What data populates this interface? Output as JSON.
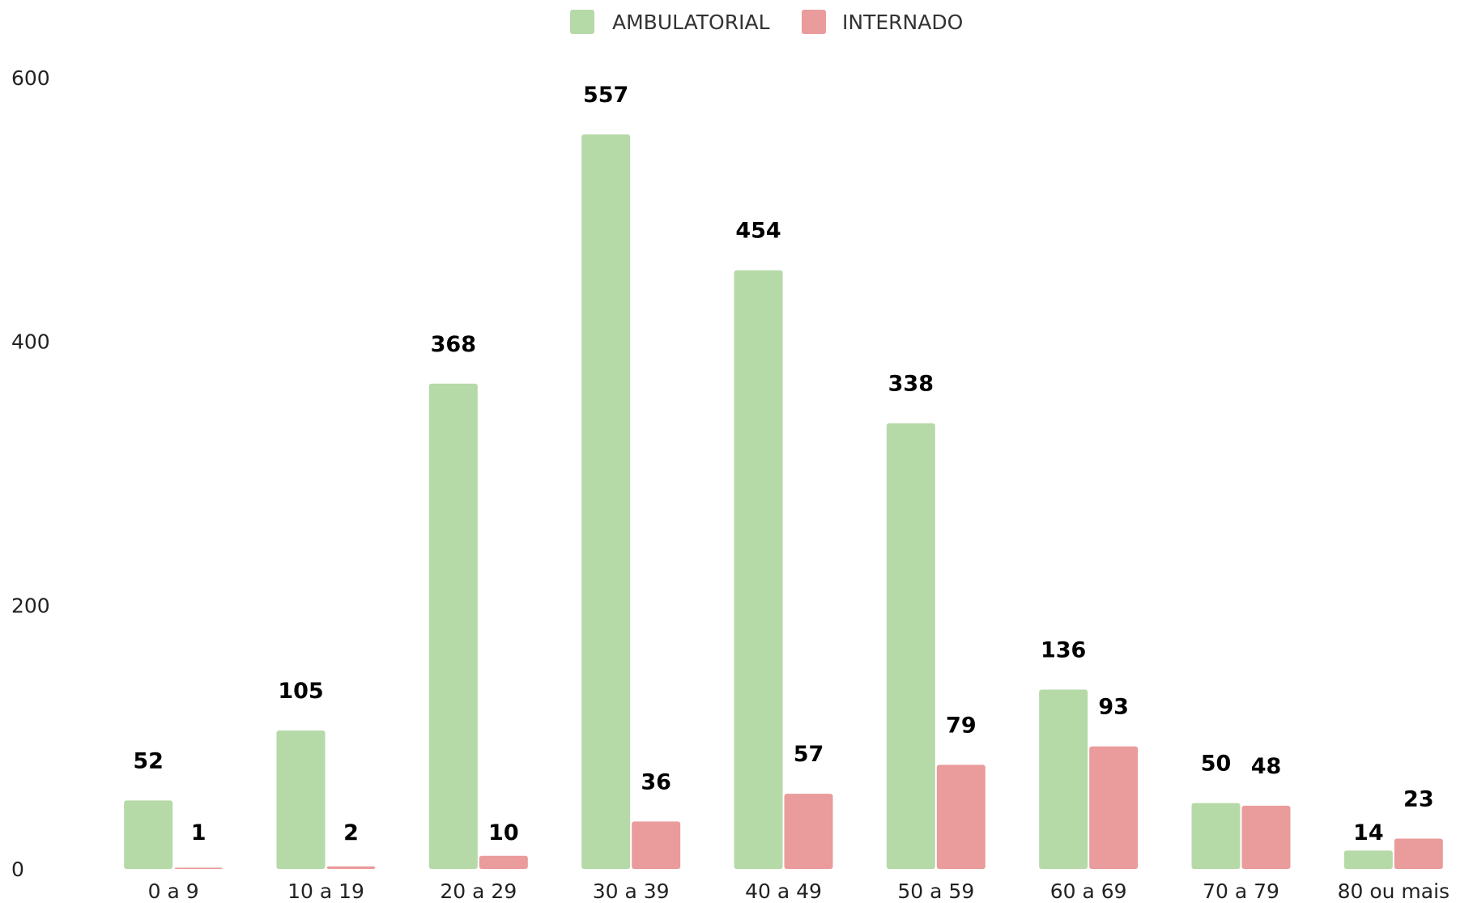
{
  "chart_data": {
    "type": "bar",
    "categories": [
      "0 a 9",
      "10 a 19",
      "20 a 29",
      "30 a 39",
      "40 a 49",
      "50 a 59",
      "60 a 69",
      "70 a 79",
      "80 ou mais"
    ],
    "series": [
      {
        "name": "AMBULATORIAL",
        "color": "#b6d9a8",
        "values": [
          52,
          105,
          368,
          557,
          454,
          338,
          136,
          50,
          14
        ]
      },
      {
        "name": "INTERNADO",
        "color": "#ea9b9b",
        "values": [
          1,
          2,
          10,
          36,
          57,
          79,
          93,
          48,
          23
        ]
      }
    ],
    "ylim": [
      0,
      600
    ],
    "yticks": [
      0,
      200,
      400,
      600
    ],
    "grid": false,
    "legend_position": "top-center",
    "data_labels": true
  }
}
